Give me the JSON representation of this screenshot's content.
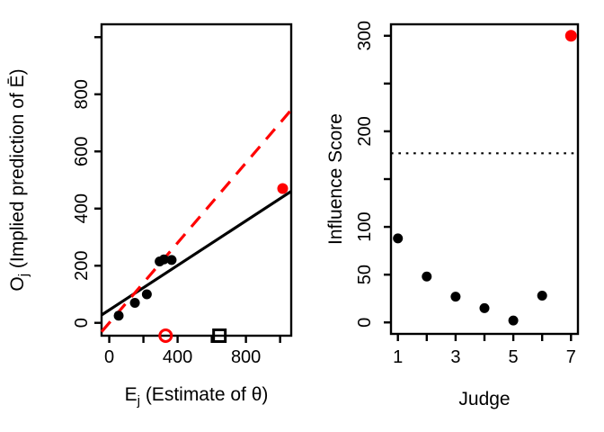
{
  "figure": {
    "background": "#ffffff",
    "accent_red": "#ff0000",
    "ink": "#000000"
  },
  "chart_data": [
    {
      "id": "implied-prediction-scatter",
      "type": "scatter",
      "xlabel": {
        "base": "E",
        "sub": "j",
        "rest": " (Estimate of θ)"
      },
      "ylabel": {
        "base": "O",
        "sub": "j",
        "rest": " (Implied prediction of Ē)"
      },
      "xlim": [
        -45,
        1065
      ],
      "ylim": [
        -45,
        1045
      ],
      "xticks": {
        "values": [
          0,
          200,
          400,
          600,
          800,
          1000
        ],
        "labels": [
          "0",
          "",
          "400",
          "",
          "800",
          ""
        ]
      },
      "yticks": {
        "values": [
          0,
          200,
          400,
          600,
          800,
          1000
        ],
        "labels": [
          "0",
          "200",
          "400",
          "600",
          "800",
          ""
        ]
      },
      "grid": false,
      "legend": null,
      "series": [
        {
          "name": "judge-points",
          "marker": "filled-circle",
          "color": "#000000",
          "size": 5.5,
          "points": [
            [
              55,
              25
            ],
            [
              150,
              70
            ],
            [
              220,
              100
            ],
            [
              295,
              215
            ],
            [
              320,
              222
            ],
            [
              365,
              220
            ]
          ]
        },
        {
          "name": "influential-judge-point",
          "marker": "filled-circle",
          "color": "#ff0000",
          "size": 6,
          "points": [
            [
              1015,
              470
            ]
          ]
        },
        {
          "name": "axis-marker-open-circle",
          "marker": "open-circle",
          "color": "#ff0000",
          "size": 6.5,
          "points": [
            [
              330,
              -45
            ]
          ]
        },
        {
          "name": "axis-marker-open-square",
          "marker": "open-square",
          "color": "#000000",
          "size": 6.5,
          "points": [
            [
              645,
              -45
            ]
          ]
        }
      ],
      "lines": [
        {
          "name": "fit-line",
          "style": "solid",
          "color": "#000000",
          "width": 3.2,
          "intercept": 45,
          "slope": 0.39
        },
        {
          "name": "reference-line",
          "style": "dashed",
          "color": "#ff0000",
          "width": 3.2,
          "intercept": 0,
          "slope": 0.7
        }
      ]
    },
    {
      "id": "influence-score-plot",
      "type": "scatter",
      "xlabel": {
        "base": "Judge",
        "sub": "",
        "rest": ""
      },
      "ylabel": {
        "base": "Influence Score",
        "sub": "",
        "rest": ""
      },
      "xlim": [
        0.76,
        7.24
      ],
      "ylim": [
        -12,
        312
      ],
      "xticks": {
        "values": [
          1,
          2,
          3,
          4,
          5,
          6,
          7
        ],
        "labels": [
          "1",
          "",
          "3",
          "",
          "5",
          "",
          "7"
        ]
      },
      "yticks": {
        "values": [
          0,
          50,
          100,
          150,
          200,
          250,
          300
        ],
        "labels": [
          "0",
          "50",
          "100",
          "",
          "200",
          "",
          "300"
        ]
      },
      "grid": false,
      "legend": null,
      "series": [
        {
          "name": "judge-points",
          "marker": "filled-circle",
          "color": "#000000",
          "size": 5.5,
          "points": [
            [
              1,
              88
            ],
            [
              2,
              48
            ],
            [
              3,
              27
            ],
            [
              4,
              15
            ],
            [
              5,
              2
            ],
            [
              6,
              28
            ]
          ]
        },
        {
          "name": "influential-judge-point",
          "marker": "filled-circle",
          "color": "#ff0000",
          "size": 6.5,
          "points": [
            [
              7,
              300
            ]
          ]
        }
      ],
      "lines": [
        {
          "name": "threshold-line",
          "style": "dotted",
          "color": "#000000",
          "width": 2.2,
          "intercept": 177,
          "slope": 0
        }
      ]
    }
  ]
}
